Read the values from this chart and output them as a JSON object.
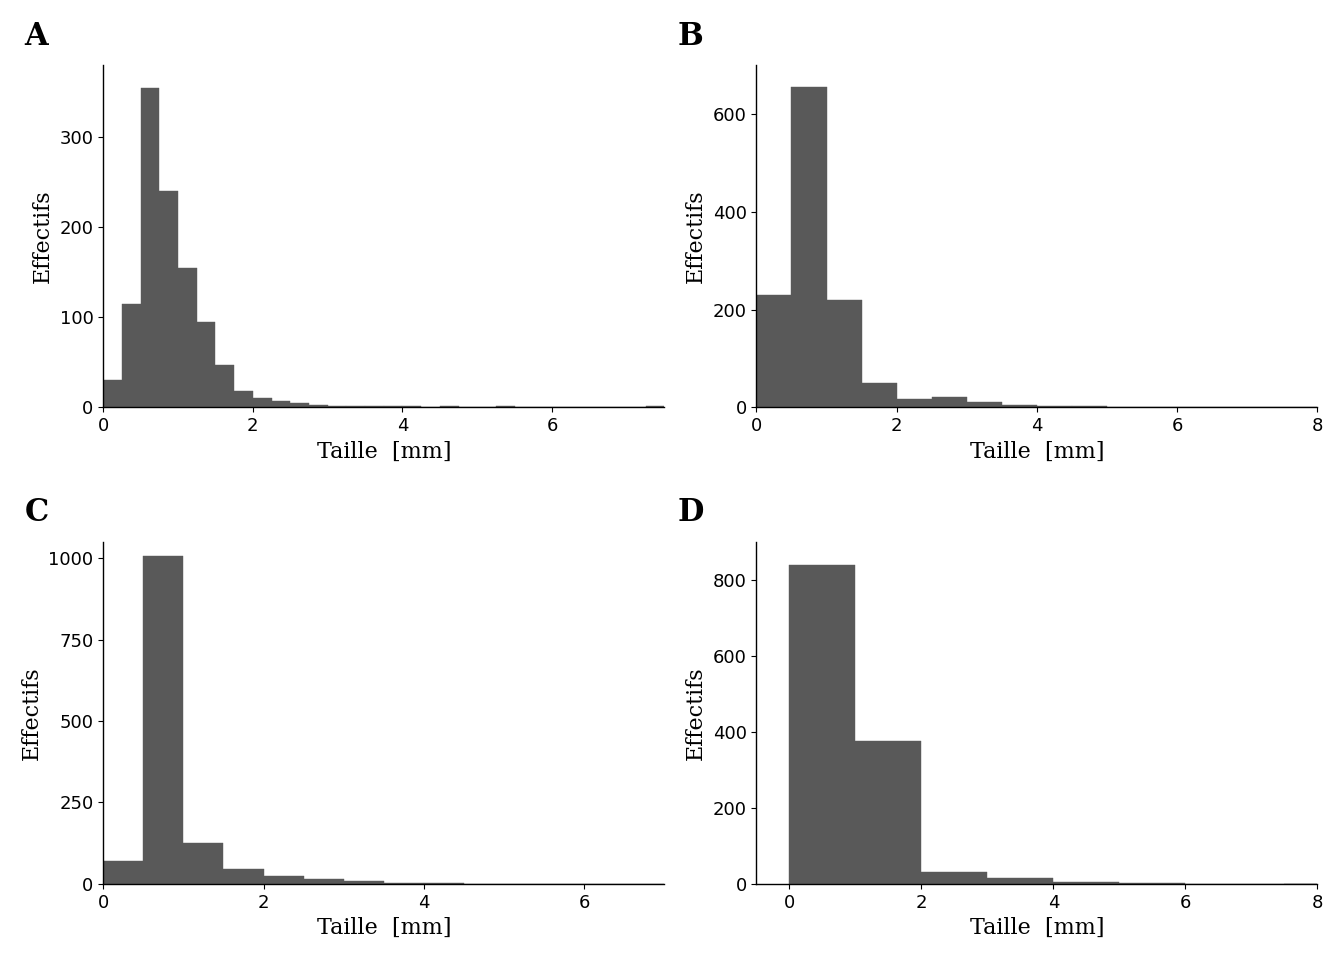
{
  "bar_color": "#595959",
  "bar_edgecolor": "#595959",
  "ylabel": "Effectifs",
  "xlabel": "Taille  [mm]",
  "panel_label_fontsize": 22,
  "axis_label_fontsize": 16,
  "tick_fontsize": 13,
  "background_color": "#ffffff",
  "panels": [
    {
      "label": "A",
      "bin_width": 0.25,
      "xlim": [
        0,
        7.5
      ],
      "ylim": [
        0,
        380
      ],
      "yticks": [
        0,
        100,
        200,
        300
      ],
      "xticks": [
        0,
        2,
        4,
        6
      ],
      "bar_heights": [
        30,
        115,
        355,
        240,
        155,
        95,
        47,
        18,
        10,
        7,
        5,
        3,
        2,
        1,
        1,
        1,
        1,
        0,
        1,
        0,
        0,
        1,
        0,
        0,
        0,
        0,
        0,
        0,
        0,
        1
      ],
      "bar_starts": [
        0.0,
        0.25,
        0.5,
        0.75,
        1.0,
        1.25,
        1.5,
        1.75,
        2.0,
        2.25,
        2.5,
        2.75,
        3.0,
        3.25,
        3.5,
        3.75,
        4.0,
        4.25,
        4.5,
        4.75,
        5.0,
        5.25,
        5.5,
        5.75,
        6.0,
        6.25,
        6.5,
        6.75,
        7.0,
        7.25
      ]
    },
    {
      "label": "B",
      "bin_width": 0.5,
      "xlim": [
        0,
        8
      ],
      "ylim": [
        0,
        700
      ],
      "yticks": [
        0,
        200,
        400,
        600
      ],
      "xticks": [
        0,
        2,
        4,
        6,
        8
      ],
      "bar_heights": [
        230,
        655,
        220,
        50,
        17,
        22,
        10,
        5,
        3,
        2,
        1,
        1,
        0,
        1,
        0,
        1
      ],
      "bar_starts": [
        0.0,
        0.5,
        1.0,
        1.5,
        2.0,
        2.5,
        3.0,
        3.5,
        4.0,
        4.5,
        5.0,
        5.5,
        6.0,
        6.5,
        7.0,
        7.5
      ]
    },
    {
      "label": "C",
      "bin_width": 0.5,
      "xlim": [
        0,
        7
      ],
      "ylim": [
        0,
        1050
      ],
      "yticks": [
        0,
        250,
        500,
        750,
        1000
      ],
      "xticks": [
        0,
        2,
        4,
        6
      ],
      "bar_heights": [
        70,
        1005,
        125,
        45,
        25,
        15,
        8,
        3,
        2,
        1,
        1,
        0,
        1,
        0
      ],
      "bar_starts": [
        0.0,
        0.5,
        1.0,
        1.5,
        2.0,
        2.5,
        3.0,
        3.5,
        4.0,
        4.5,
        5.0,
        5.5,
        6.0,
        6.5
      ]
    },
    {
      "label": "D",
      "bin_width": 1.0,
      "xlim": [
        -0.5,
        8
      ],
      "ylim": [
        0,
        900
      ],
      "yticks": [
        0,
        200,
        400,
        600,
        800
      ],
      "xticks": [
        0,
        2,
        4,
        6,
        8
      ],
      "bar_heights": [
        840,
        375,
        30,
        15,
        5,
        2,
        1,
        0,
        1
      ],
      "bar_starts": [
        0.0,
        1.0,
        2.0,
        3.0,
        4.0,
        5.0,
        6.0,
        7.0,
        7.5
      ]
    }
  ]
}
